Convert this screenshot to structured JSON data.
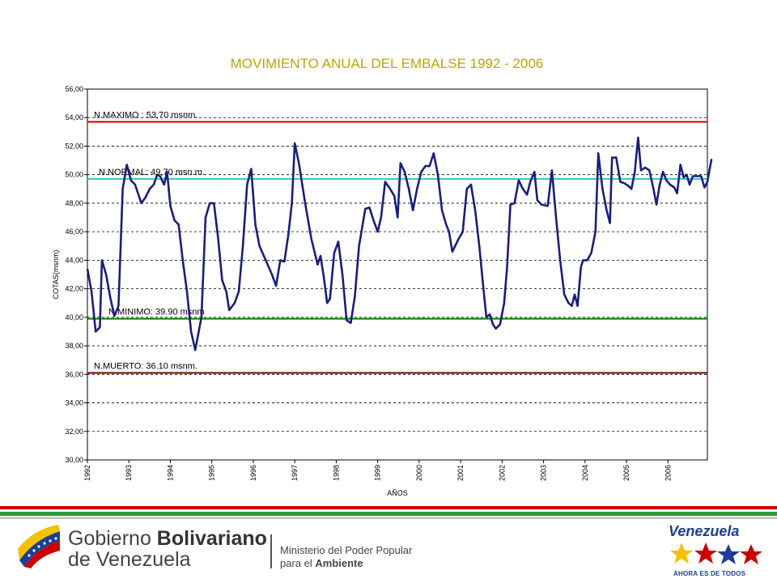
{
  "chart_data": {
    "type": "line",
    "title": "MOVIMIENTO ANUAL DEL EMBALSE 1992 - 2006",
    "xlabel": "AÑOS",
    "ylabel": "COTAS(msnm)",
    "ylim": [
      30,
      56
    ],
    "xlim": [
      1992,
      2006.95
    ],
    "y_ticks": [
      "30,00",
      "32,00",
      "34,00",
      "36,00",
      "38,00",
      "40,00",
      "42,00",
      "44,00",
      "46,00",
      "48,00",
      "50,00",
      "52,00",
      "54,00",
      "56,00"
    ],
    "x_ticks": [
      "1992",
      "1993",
      "1994",
      "1995",
      "1996",
      "1997",
      "1998",
      "1999",
      "2000",
      "2001",
      "2002",
      "2003",
      "2004",
      "2005",
      "2006"
    ],
    "grid": true,
    "reference_lines": [
      {
        "label": "N.MAXIMO : 53,70 msnm.",
        "value": 53.7,
        "color": "#cc0000"
      },
      {
        "label": "N.NORMAL: 49,70 msn.m.",
        "value": 49.7,
        "color": "#33cccc"
      },
      {
        "label": "N.MINIMO: 39.90 msnm",
        "value": 39.9,
        "color": "#008000"
      },
      {
        "label": "N.MUERTO: 36.10 msnm.",
        "value": 36.1,
        "color": "#800000"
      }
    ],
    "series": [
      {
        "color": "#1a1f7a",
        "points": [
          [
            1992.0,
            43.4
          ],
          [
            1992.1,
            41.8
          ],
          [
            1992.2,
            39.0
          ],
          [
            1992.3,
            39.3
          ],
          [
            1992.35,
            44.0
          ],
          [
            1992.45,
            43.0
          ],
          [
            1992.55,
            41.4
          ],
          [
            1992.65,
            40.1
          ],
          [
            1992.75,
            40.8
          ],
          [
            1992.85,
            49.0
          ],
          [
            1992.95,
            50.7
          ],
          [
            1993.05,
            49.6
          ],
          [
            1993.15,
            49.3
          ],
          [
            1993.3,
            48.0
          ],
          [
            1993.4,
            48.4
          ],
          [
            1993.5,
            49.0
          ],
          [
            1993.6,
            49.3
          ],
          [
            1993.68,
            50.0
          ],
          [
            1993.75,
            49.9
          ],
          [
            1993.85,
            49.3
          ],
          [
            1993.92,
            50.2
          ],
          [
            1994.0,
            47.8
          ],
          [
            1994.1,
            46.8
          ],
          [
            1994.2,
            46.5
          ],
          [
            1994.3,
            44.0
          ],
          [
            1994.4,
            41.8
          ],
          [
            1994.5,
            39.0
          ],
          [
            1994.6,
            37.7
          ],
          [
            1994.75,
            40.0
          ],
          [
            1994.85,
            47.0
          ],
          [
            1994.95,
            48.0
          ],
          [
            1995.05,
            48.0
          ],
          [
            1995.15,
            45.6
          ],
          [
            1995.25,
            42.6
          ],
          [
            1995.35,
            41.8
          ],
          [
            1995.42,
            40.5
          ],
          [
            1995.55,
            41.0
          ],
          [
            1995.65,
            41.8
          ],
          [
            1995.75,
            45.0
          ],
          [
            1995.85,
            49.3
          ],
          [
            1995.95,
            50.4
          ],
          [
            1996.05,
            46.5
          ],
          [
            1996.15,
            45.0
          ],
          [
            1996.3,
            44.0
          ],
          [
            1996.45,
            43.0
          ],
          [
            1996.55,
            42.2
          ],
          [
            1996.65,
            44.0
          ],
          [
            1996.75,
            43.9
          ],
          [
            1996.85,
            45.9
          ],
          [
            1996.93,
            48.0
          ],
          [
            1997.0,
            52.2
          ],
          [
            1997.1,
            50.8
          ],
          [
            1997.25,
            48.0
          ],
          [
            1997.4,
            45.5
          ],
          [
            1997.55,
            43.7
          ],
          [
            1997.62,
            44.3
          ],
          [
            1997.7,
            42.8
          ],
          [
            1997.78,
            41.0
          ],
          [
            1997.85,
            41.3
          ],
          [
            1997.95,
            44.5
          ],
          [
            1998.05,
            45.3
          ],
          [
            1998.15,
            43.0
          ],
          [
            1998.25,
            39.8
          ],
          [
            1998.35,
            39.6
          ],
          [
            1998.45,
            41.5
          ],
          [
            1998.55,
            45.0
          ],
          [
            1998.7,
            47.6
          ],
          [
            1998.8,
            47.7
          ],
          [
            1998.9,
            46.8
          ],
          [
            1999.0,
            46.0
          ],
          [
            1999.08,
            47.0
          ],
          [
            1999.18,
            49.5
          ],
          [
            1999.3,
            49.0
          ],
          [
            1999.4,
            48.5
          ],
          [
            1999.48,
            47.0
          ],
          [
            1999.55,
            50.8
          ],
          [
            1999.65,
            50.2
          ],
          [
            1999.75,
            49.0
          ],
          [
            1999.85,
            47.5
          ],
          [
            1999.95,
            49.0
          ],
          [
            2000.05,
            50.2
          ],
          [
            2000.15,
            50.6
          ],
          [
            2000.25,
            50.6
          ],
          [
            2000.35,
            51.5
          ],
          [
            2000.45,
            50.0
          ],
          [
            2000.55,
            47.5
          ],
          [
            2000.65,
            46.5
          ],
          [
            2000.72,
            46.0
          ],
          [
            2000.8,
            44.6
          ],
          [
            2000.95,
            45.5
          ],
          [
            2001.05,
            46.0
          ],
          [
            2001.15,
            49.0
          ],
          [
            2001.25,
            49.3
          ],
          [
            2001.35,
            47.5
          ],
          [
            2001.45,
            45.0
          ],
          [
            2001.55,
            42.0
          ],
          [
            2001.62,
            40.0
          ],
          [
            2001.7,
            40.2
          ],
          [
            2001.78,
            39.5
          ],
          [
            2001.85,
            39.2
          ],
          [
            2001.95,
            39.5
          ],
          [
            2002.05,
            41.0
          ],
          [
            2002.12,
            43.5
          ],
          [
            2002.2,
            47.9
          ],
          [
            2002.3,
            48.0
          ],
          [
            2002.4,
            49.6
          ],
          [
            2002.5,
            49.0
          ],
          [
            2002.6,
            48.6
          ],
          [
            2002.68,
            49.5
          ],
          [
            2002.78,
            50.2
          ],
          [
            2002.85,
            48.2
          ],
          [
            2002.95,
            47.9
          ],
          [
            2003.1,
            47.8
          ],
          [
            2003.2,
            50.3
          ],
          [
            2003.3,
            47.0
          ],
          [
            2003.4,
            44.0
          ],
          [
            2003.5,
            41.6
          ],
          [
            2003.6,
            41.0
          ],
          [
            2003.68,
            40.8
          ],
          [
            2003.75,
            41.6
          ],
          [
            2003.82,
            40.8
          ],
          [
            2003.9,
            43.5
          ],
          [
            2003.95,
            44.0
          ],
          [
            2004.05,
            44.0
          ],
          [
            2004.15,
            44.5
          ],
          [
            2004.25,
            46.0
          ],
          [
            2004.32,
            51.5
          ],
          [
            2004.42,
            49.0
          ],
          [
            2004.52,
            47.5
          ],
          [
            2004.6,
            46.6
          ],
          [
            2004.65,
            51.2
          ],
          [
            2004.75,
            51.2
          ],
          [
            2004.85,
            49.5
          ],
          [
            2004.95,
            49.4
          ],
          [
            2005.05,
            49.2
          ],
          [
            2005.12,
            49.0
          ],
          [
            2005.2,
            50.2
          ],
          [
            2005.28,
            52.6
          ],
          [
            2005.35,
            50.3
          ],
          [
            2005.45,
            50.5
          ],
          [
            2005.55,
            50.3
          ],
          [
            2005.65,
            49.0
          ],
          [
            2005.72,
            47.9
          ],
          [
            2005.8,
            49.3
          ],
          [
            2005.88,
            50.2
          ],
          [
            2005.96,
            49.6
          ],
          [
            2006.05,
            49.3
          ],
          [
            2006.15,
            49.1
          ],
          [
            2006.22,
            48.7
          ],
          [
            2006.3,
            50.7
          ],
          [
            2006.38,
            49.8
          ],
          [
            2006.45,
            50.0
          ],
          [
            2006.52,
            49.3
          ],
          [
            2006.6,
            49.9
          ],
          [
            2006.7,
            49.9
          ],
          [
            2006.8,
            49.9
          ],
          [
            2006.88,
            49.1
          ],
          [
            2006.95,
            49.5
          ],
          [
            2007.05,
            51.1
          ]
        ]
      }
    ]
  },
  "footer": {
    "gov_line1_a": "Gobierno ",
    "gov_line1_b": "Bolivariano",
    "gov_line2": "de Venezuela",
    "ministry_line1": "Ministerio del Poder Popular",
    "ministry_line2_a": "para el ",
    "ministry_line2_b": "Ambiente",
    "venezuela_logo": "Venezuela",
    "slogan": "AHORA ES DE TODOS"
  },
  "colors": {
    "stripe_red": "#cc0000",
    "stripe_green": "#2a9d3a",
    "title": "#b8a800",
    "series": "#1a1f7a"
  }
}
